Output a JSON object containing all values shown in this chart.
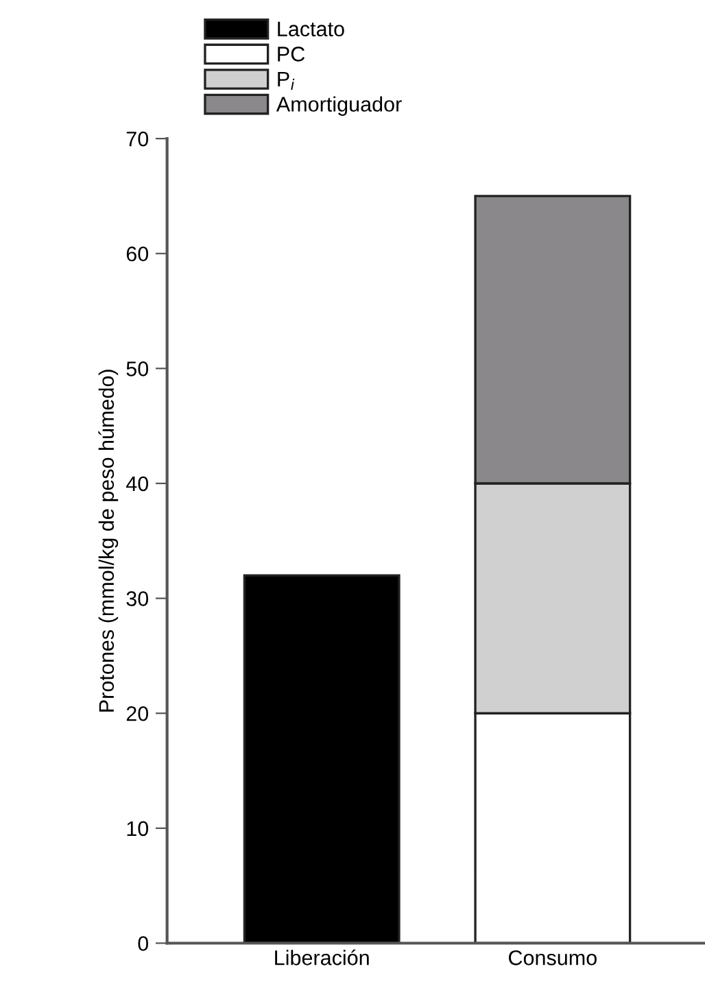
{
  "chart_data": {
    "type": "bar",
    "ylabel": "Protones (mmol/kg de peso húmedo)",
    "categories": [
      "Liberación",
      "Consumo"
    ],
    "stacked": true,
    "ylim": [
      0,
      70
    ],
    "yticks": [
      0,
      10,
      20,
      30,
      40,
      50,
      60,
      70
    ],
    "legend": "top left",
    "grid": false,
    "series": [
      {
        "name": "Lactato",
        "color": "#000000",
        "values": [
          32,
          null
        ]
      },
      {
        "name": "PC",
        "color": "#ffffff",
        "values": [
          null,
          20
        ]
      },
      {
        "name": "P$_{i}$",
        "color": "#d0d0d0",
        "values": [
          null,
          20
        ]
      },
      {
        "name": "Amortiguador",
        "color": "#8a888a",
        "values": [
          null,
          25
        ]
      }
    ]
  }
}
